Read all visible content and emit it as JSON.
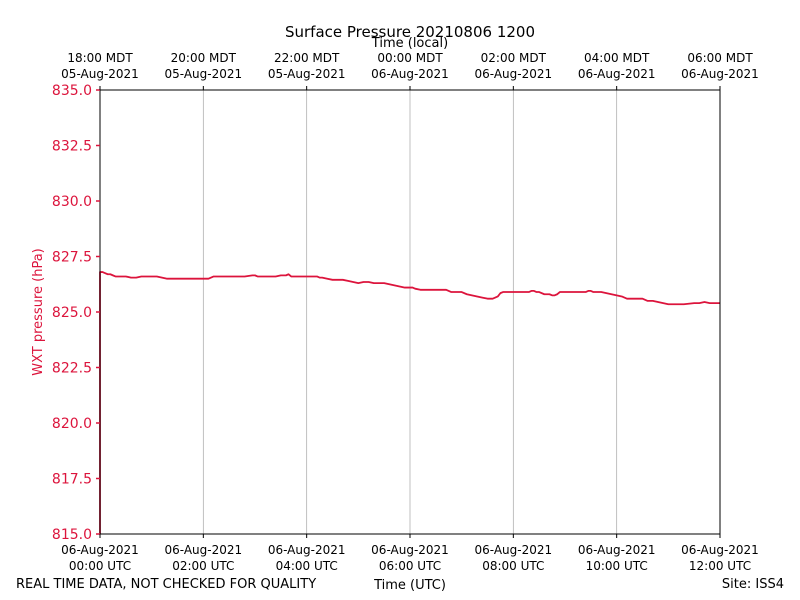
{
  "chart_data": {
    "type": "line",
    "title": "Surface Pressure 20210806 1200",
    "xlabel": "Time (UTC)",
    "x2label": "Time (local)",
    "ylabel": "WXT pressure (hPa)",
    "ylim": [
      815.0,
      835.0
    ],
    "xlim": [
      0,
      12
    ],
    "y_ticks": [
      815.0,
      817.5,
      820.0,
      822.5,
      825.0,
      827.5,
      830.0,
      832.5,
      835.0
    ],
    "y_tick_labels": [
      "815.0",
      "817.5",
      "820.0",
      "822.5",
      "825.0",
      "827.5",
      "830.0",
      "832.5",
      "835.0"
    ],
    "x_ticks": [
      0,
      2,
      4,
      6,
      8,
      10,
      12
    ],
    "x_tick_labels": [
      [
        "06-Aug-2021",
        "00:00 UTC"
      ],
      [
        "06-Aug-2021",
        "02:00 UTC"
      ],
      [
        "06-Aug-2021",
        "04:00 UTC"
      ],
      [
        "06-Aug-2021",
        "06:00 UTC"
      ],
      [
        "06-Aug-2021",
        "08:00 UTC"
      ],
      [
        "06-Aug-2021",
        "10:00 UTC"
      ],
      [
        "06-Aug-2021",
        "12:00 UTC"
      ]
    ],
    "x2_tick_labels": [
      [
        "18:00 MDT",
        "05-Aug-2021"
      ],
      [
        "20:00 MDT",
        "05-Aug-2021"
      ],
      [
        "22:00 MDT",
        "05-Aug-2021"
      ],
      [
        "00:00 MDT",
        "06-Aug-2021"
      ],
      [
        "02:00 MDT",
        "06-Aug-2021"
      ],
      [
        "04:00 MDT",
        "06-Aug-2021"
      ],
      [
        "06:00 MDT",
        "06-Aug-2021"
      ]
    ],
    "grid": "vertical",
    "series": [
      {
        "name": "WXT pressure",
        "color": "#dc143c",
        "x": [
          0,
          0,
          0.05,
          0.1,
          0.15,
          0.2,
          0.25,
          0.3,
          0.4,
          0.5,
          0.6,
          0.7,
          0.8,
          0.9,
          0.95,
          1.0,
          1.1,
          1.2,
          1.3,
          1.4,
          1.5,
          1.6,
          1.7,
          1.8,
          1.9,
          2.0,
          2.1,
          2.15,
          2.2,
          2.4,
          2.6,
          2.8,
          2.95,
          3.0,
          3.05,
          3.2,
          3.4,
          3.5,
          3.6,
          3.65,
          3.7,
          3.8,
          4.0,
          4.2,
          4.25,
          4.3,
          4.4,
          4.5,
          4.6,
          4.7,
          4.8,
          4.9,
          5.0,
          5.1,
          5.2,
          5.3,
          5.5,
          5.6,
          5.7,
          5.8,
          5.9,
          6.0,
          6.05,
          6.1,
          6.2,
          6.4,
          6.6,
          6.7,
          6.8,
          7.0,
          7.1,
          7.2,
          7.3,
          7.4,
          7.5,
          7.6,
          7.65,
          7.7,
          7.75,
          7.8,
          7.85,
          7.9,
          8.0,
          8.2,
          8.3,
          8.35,
          8.4,
          8.45,
          8.5,
          8.6,
          8.7,
          8.75,
          8.8,
          8.85,
          8.9,
          9.0,
          9.2,
          9.4,
          9.45,
          9.5,
          9.55,
          9.6,
          9.7,
          9.8,
          9.9,
          10.0,
          10.1,
          10.2,
          10.4,
          10.5,
          10.6,
          10.7,
          10.8,
          10.9,
          11.0,
          11.1,
          11.2,
          11.3,
          11.5,
          11.6,
          11.7,
          11.8,
          11.9,
          12.0
        ],
        "y": [
          815.0,
          826.8,
          826.8,
          826.75,
          826.7,
          826.7,
          826.65,
          826.6,
          826.6,
          826.6,
          826.55,
          826.55,
          826.6,
          826.6,
          826.6,
          826.6,
          826.6,
          826.55,
          826.5,
          826.5,
          826.5,
          826.5,
          826.5,
          826.5,
          826.5,
          826.5,
          826.5,
          826.55,
          826.6,
          826.6,
          826.6,
          826.6,
          826.65,
          826.65,
          826.6,
          826.6,
          826.6,
          826.65,
          826.65,
          826.7,
          826.6,
          826.6,
          826.6,
          826.6,
          826.55,
          826.55,
          826.5,
          826.45,
          826.45,
          826.45,
          826.4,
          826.35,
          826.3,
          826.35,
          826.35,
          826.3,
          826.3,
          826.25,
          826.2,
          826.15,
          826.1,
          826.1,
          826.1,
          826.05,
          826.0,
          826.0,
          826.0,
          826.0,
          825.9,
          825.9,
          825.8,
          825.75,
          825.7,
          825.65,
          825.6,
          825.6,
          825.65,
          825.7,
          825.85,
          825.9,
          825.9,
          825.9,
          825.9,
          825.9,
          825.9,
          825.95,
          825.95,
          825.9,
          825.9,
          825.8,
          825.8,
          825.75,
          825.75,
          825.8,
          825.9,
          825.9,
          825.9,
          825.9,
          825.95,
          825.95,
          825.9,
          825.9,
          825.9,
          825.85,
          825.8,
          825.75,
          825.7,
          825.6,
          825.6,
          825.6,
          825.5,
          825.5,
          825.45,
          825.4,
          825.35,
          825.35,
          825.35,
          825.35,
          825.4,
          825.4,
          825.45,
          825.4,
          825.4,
          825.4
        ]
      }
    ]
  },
  "footer": {
    "disclaimer": "REAL TIME DATA, NOT CHECKED FOR QUALITY",
    "site": "Site: ISS4"
  }
}
